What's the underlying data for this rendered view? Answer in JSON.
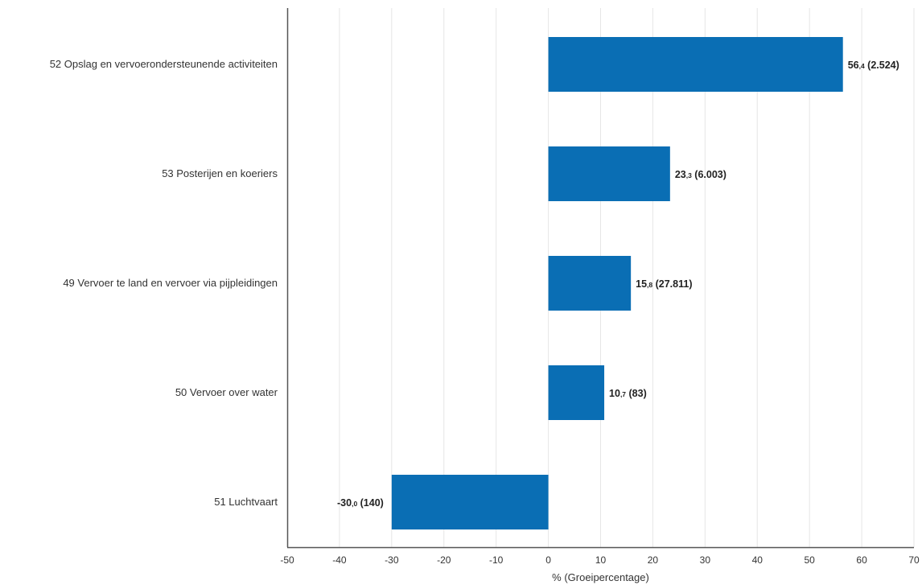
{
  "chart_data": {
    "type": "bar",
    "orientation": "horizontal",
    "categories": [
      "52 Opslag en vervoerondersteunende activiteiten",
      "53 Posterijen en koeriers",
      "49 Vervoer te land en vervoer via pijpleidingen",
      "50 Vervoer over water",
      "51 Luchtvaart"
    ],
    "values": [
      56.4,
      23.3,
      15.8,
      10.7,
      -30.0
    ],
    "value_labels": [
      {
        "int": "56",
        "dec": ",4",
        "count": "(2.524)"
      },
      {
        "int": "23",
        "dec": ",3",
        "count": "(6.003)"
      },
      {
        "int": "15",
        "dec": ",8",
        "count": "(27.811)"
      },
      {
        "int": "10",
        "dec": ",7",
        "count": "(83)"
      },
      {
        "int": "-30",
        "dec": ",0",
        "count": "(140)"
      }
    ],
    "xlabel": "% (Groeipercentage)",
    "xlim": [
      -50,
      70
    ],
    "xticks": [
      "-50",
      "-40",
      "-30",
      "-20",
      "-10",
      "0",
      "10",
      "20",
      "30",
      "40",
      "50",
      "60",
      "70"
    ],
    "grid": true,
    "bar_color": "#0a6eb4"
  }
}
